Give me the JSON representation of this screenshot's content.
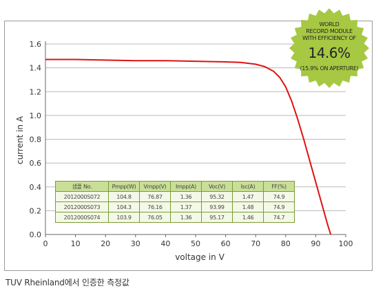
{
  "caption": "TUV Rheinland에서 인증한 측정값",
  "badge": {
    "line1": "WORLD",
    "line2": "RECORD MODULE",
    "line3": "WITH EFFICIENCY OF",
    "value": "14.6%",
    "note": "(15.9% ON APERTURE)",
    "color": "#a6c843"
  },
  "table": {
    "headers": [
      "샘플 No.",
      "Pmpp(W)",
      "Vmpp(V)",
      "Impp(A)",
      "Voc(V)",
      "Isc(A)",
      "FF(%)"
    ],
    "rows": [
      [
        "2012000S072",
        "104.8",
        "76.87",
        "1.36",
        "95.32",
        "1.47",
        "74.9"
      ],
      [
        "2012000S073",
        "104.3",
        "76.16",
        "1.37",
        "93.99",
        "1.48",
        "74.9"
      ],
      [
        "2012000S074",
        "103.9",
        "76.05",
        "1.36",
        "95.17",
        "1.46",
        "74.7"
      ]
    ],
    "header_color": "#c9de96",
    "border_color": "#7c9a35"
  },
  "chart_data": {
    "type": "line",
    "xlabel": "voltage in V",
    "ylabel": "current in A",
    "xlim": [
      0,
      100
    ],
    "ylim": [
      0,
      1.6
    ],
    "x_ticks": [
      "0",
      "10",
      "20",
      "30",
      "40",
      "50",
      "60",
      "70",
      "80",
      "90",
      "100"
    ],
    "y_ticks": [
      "0.0",
      "0.2",
      "0.4",
      "0.6",
      "0.8",
      "1.0",
      "1.2",
      "1.4",
      "1.6"
    ],
    "grid": true,
    "series": [
      {
        "color": "#e01010",
        "x": [
          0,
          10,
          20,
          30,
          40,
          50,
          60,
          65,
          70,
          73,
          76,
          78,
          80,
          82,
          84,
          86,
          88,
          90,
          92,
          94,
          95
        ],
        "y": [
          1.47,
          1.47,
          1.465,
          1.46,
          1.46,
          1.455,
          1.45,
          1.445,
          1.43,
          1.41,
          1.37,
          1.32,
          1.24,
          1.12,
          0.97,
          0.8,
          0.62,
          0.44,
          0.26,
          0.08,
          0.0
        ]
      }
    ]
  }
}
